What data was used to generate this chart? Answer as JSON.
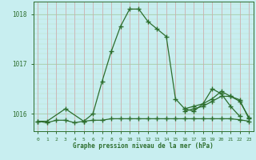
{
  "xlabel": "Graphe pression niveau de la mer (hPa)",
  "bg_color": "#c8eef0",
  "grid_color_h": "#a8d8c8",
  "grid_color_v": "#c8b8b8",
  "line_color": "#2d6e2d",
  "ylim": [
    1015.65,
    1018.25
  ],
  "xlim": [
    -0.5,
    23.5
  ],
  "yticks": [
    1016,
    1017,
    1018
  ],
  "xticks": [
    0,
    1,
    2,
    3,
    4,
    5,
    6,
    7,
    8,
    9,
    10,
    11,
    12,
    13,
    14,
    15,
    16,
    17,
    18,
    19,
    20,
    21,
    22,
    23
  ],
  "series": [
    [
      1015.85,
      1015.85,
      null,
      1016.1,
      null,
      1015.85,
      1016.0,
      1016.65,
      1017.25,
      1017.75,
      1018.1,
      1018.1,
      1017.85,
      1017.7,
      1017.55,
      1016.3,
      1016.1,
      1016.05,
      1016.2,
      1016.5,
      1016.4,
      1016.15,
      1015.95,
      null
    ],
    [
      1015.85,
      1015.82,
      1015.87,
      1015.87,
      1015.82,
      1015.85,
      1015.87,
      1015.87,
      1015.9,
      1015.9,
      1015.9,
      1015.9,
      1015.9,
      1015.9,
      1015.9,
      1015.9,
      1015.9,
      1015.9,
      1015.9,
      1015.9,
      1015.9,
      1015.9,
      1015.88,
      1015.85
    ],
    [
      null,
      null,
      null,
      null,
      null,
      null,
      null,
      null,
      null,
      null,
      null,
      null,
      null,
      null,
      null,
      null,
      1016.05,
      1016.1,
      1016.15,
      1016.25,
      1016.35,
      1016.35,
      1016.25,
      1015.93
    ],
    [
      null,
      null,
      null,
      null,
      null,
      null,
      null,
      null,
      null,
      null,
      null,
      null,
      null,
      null,
      null,
      null,
      1016.1,
      1016.15,
      1016.2,
      1016.3,
      1016.45,
      1016.35,
      1016.28,
      1015.9
    ]
  ]
}
